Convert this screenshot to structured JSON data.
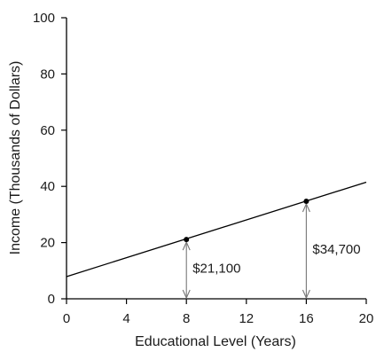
{
  "chart_data": {
    "type": "line",
    "xlabel": "Educational Level (Years)",
    "ylabel": "Income (Thousands of Dollars)",
    "xlim": [
      0,
      20
    ],
    "ylim": [
      0,
      100
    ],
    "x_ticks": [
      0,
      4,
      8,
      12,
      16,
      20
    ],
    "y_ticks": [
      0,
      20,
      40,
      60,
      80,
      100
    ],
    "grid": false,
    "series": [
      {
        "x": [
          0,
          20
        ],
        "y": [
          7.9,
          41.5
        ]
      }
    ],
    "points": [
      {
        "x": 8,
        "y": 21.1
      },
      {
        "x": 16,
        "y": 34.7
      }
    ],
    "annotations": [
      {
        "x": 8,
        "y_from": 0,
        "y_to": 21.1,
        "text": "$21,100"
      },
      {
        "x": 16,
        "y_from": 0,
        "y_to": 34.7,
        "text": "$34,700"
      }
    ],
    "colors": {
      "line": "#000000",
      "axis": "#000000",
      "arrow": "#777777",
      "text": "#1a1a1a"
    }
  }
}
